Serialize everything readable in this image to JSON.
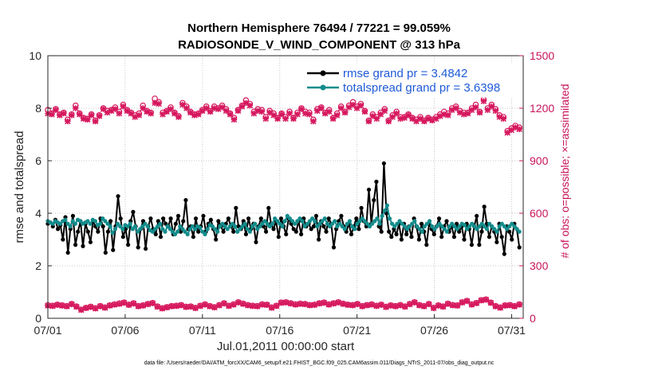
{
  "chart_data": {
    "type": "line",
    "title_line1": "Northern Hemisphere 76494 / 77221 = 99.059%",
    "title_line2": "RADIOSONDE_V_WIND_COMPONENT @ 313 hPa",
    "xlabel": "Jul.01,2011 00:00:00 start",
    "ylabel_left": "rmse and totalspread",
    "ylabel_right": "# of obs: o=possible; ×=assimilated",
    "footer": "data file: /Users/raeder/DAI/ATM_forcXX/CAM6_setup/f.e21.FHIST_BGC.f09_025.CAM6assim.011/Diags_NTrS_2011-07/obs_diag_output.nc",
    "x_ticks": [
      {
        "label": "07/01",
        "value": 0
      },
      {
        "label": "07/06",
        "value": 5
      },
      {
        "label": "07/11",
        "value": 10
      },
      {
        "label": "07/16",
        "value": 15
      },
      {
        "label": "07/21",
        "value": 20
      },
      {
        "label": "07/26",
        "value": 25
      },
      {
        "label": "07/31",
        "value": 30
      }
    ],
    "xlim": [
      0,
      30.75
    ],
    "ylim_left": [
      0,
      10
    ],
    "yticks_left": [
      "0",
      "2",
      "4",
      "6",
      "8",
      "10"
    ],
    "ylim_right": [
      0,
      1500
    ],
    "yticks_right": [
      "0",
      "300",
      "600",
      "900",
      "1200",
      "1500"
    ],
    "legend_location": "top-right",
    "colors": {
      "rmse": "#000000",
      "spread": "#138c8c",
      "obs": "#d6185e",
      "axis": "#262626"
    },
    "x_step_days": 0.25,
    "series": [
      {
        "name": "rmse grand pr = 3.4842",
        "axis": "left",
        "values": [
          3.6,
          3.65,
          3.5,
          3.75,
          3.4,
          3.55,
          3.0,
          3.85,
          2.5,
          3.4,
          3.9,
          2.8,
          3.3,
          3.7,
          2.75,
          3.6,
          3.3,
          2.9,
          3.7,
          3.5,
          3.3,
          3.8,
          3.5,
          2.5,
          3.3,
          3.7,
          2.6,
          3.5,
          4.65,
          3.8,
          3.1,
          3.4,
          2.8,
          3.7,
          4.05,
          3.5,
          2.7,
          3.4,
          3.7,
          2.65,
          3.5,
          3.8,
          3.4,
          3.2,
          3.7,
          3.1,
          3.8,
          3.6,
          3.5,
          3.8,
          3.2,
          3.6,
          3.9,
          3.3,
          3.7,
          4.5,
          3.4,
          3.5,
          3.1,
          3.8,
          3.3,
          3.5,
          3.9,
          3.3,
          3.6,
          3.75,
          3.4,
          3.0,
          3.7,
          3.5,
          3.3,
          3.6,
          3.8,
          3.5,
          3.3,
          4.2,
          3.5,
          3.4,
          3.7,
          3.2,
          3.8,
          3.4,
          3.6,
          2.9,
          3.5,
          3.8,
          3.5,
          3.3,
          4.2,
          3.6,
          3.4,
          3.7,
          3.1,
          3.8,
          3.5,
          3.2,
          3.8,
          3.6,
          3.4,
          3.3,
          3.7,
          3.2,
          3.8,
          3.5,
          3.6,
          3.4,
          3.5,
          3.9,
          3.0,
          3.7,
          3.5,
          3.3,
          3.8,
          3.6,
          2.7,
          3.4,
          3.7,
          3.9,
          3.5,
          3.3,
          3.6,
          3.2,
          3.5,
          3.8,
          3.4,
          4.2,
          3.7,
          3.5,
          4.9,
          3.6,
          4.5,
          5.2,
          3.5,
          3.3,
          5.9,
          4.0,
          3.3,
          3.1,
          3.4,
          3.2,
          3.6,
          3.0,
          3.6,
          3.2,
          3.5,
          3.1,
          3.8,
          3.5,
          3.0,
          3.6,
          3.3,
          2.8,
          3.6,
          3.4,
          3.2,
          3.5,
          3.8,
          3.1,
          3.5,
          3.7,
          3.3,
          3.5,
          3.1,
          3.6,
          3.3,
          3.5,
          3.0,
          3.6,
          3.4,
          2.8,
          3.5,
          3.9,
          2.8,
          3.3,
          4.25,
          3.6,
          3.1,
          3.5,
          3.3,
          2.9,
          3.6,
          3.1,
          2.45,
          3.5,
          3.3,
          3.0,
          3.6,
          3.4,
          2.7
        ]
      },
      {
        "name": "totalspread grand pr = 3.6398",
        "axis": "left",
        "values": [
          3.7,
          3.65,
          3.6,
          3.7,
          3.65,
          3.6,
          3.7,
          3.75,
          3.6,
          3.5,
          3.7,
          3.6,
          3.75,
          3.7,
          3.6,
          3.65,
          3.7,
          3.6,
          3.75,
          3.7,
          3.55,
          3.6,
          3.8,
          3.7,
          3.6,
          3.5,
          3.25,
          3.4,
          3.6,
          3.5,
          3.4,
          3.55,
          3.5,
          3.6,
          3.4,
          3.5,
          3.3,
          3.4,
          3.5,
          3.6,
          3.5,
          3.35,
          3.3,
          3.4,
          3.5,
          3.6,
          3.4,
          3.3,
          3.5,
          3.4,
          3.3,
          3.2,
          3.3,
          3.5,
          3.4,
          3.3,
          3.2,
          3.4,
          3.5,
          3.4,
          3.5,
          3.45,
          3.3,
          3.2,
          3.4,
          3.55,
          3.5,
          3.4,
          3.3,
          3.5,
          3.6,
          3.5,
          3.4,
          3.5,
          3.6,
          3.5,
          3.3,
          3.4,
          3.5,
          3.6,
          3.4,
          3.3,
          3.5,
          3.6,
          3.4,
          3.5,
          3.6,
          3.7,
          3.6,
          3.5,
          3.6,
          3.8,
          3.7,
          3.6,
          3.5,
          3.7,
          3.9,
          3.8,
          3.7,
          3.6,
          3.7,
          3.8,
          3.7,
          3.5,
          3.6,
          3.7,
          3.8,
          3.7,
          3.5,
          3.6,
          3.7,
          3.8,
          3.6,
          3.5,
          3.6,
          3.7,
          3.5,
          3.6,
          3.5,
          3.4,
          3.6,
          3.7,
          3.5,
          3.4,
          3.6,
          3.7,
          3.8,
          3.7,
          3.6,
          3.5,
          3.6,
          3.7,
          3.8,
          3.6,
          3.9,
          4.1,
          4.3,
          3.8,
          3.6,
          3.5,
          3.6,
          3.7,
          3.6,
          3.5,
          3.4,
          3.5,
          3.6,
          3.7,
          3.5,
          3.4,
          3.3,
          3.5,
          3.6,
          3.7,
          3.5,
          3.4,
          3.5,
          3.6,
          3.5,
          3.4,
          3.3,
          3.5,
          3.6,
          3.5,
          3.4,
          3.5,
          3.6,
          3.55,
          3.4,
          3.5,
          3.6,
          3.5,
          3.4,
          3.5,
          3.6,
          3.5,
          3.4,
          3.6,
          3.5,
          3.4,
          3.3,
          3.5,
          3.6,
          3.5,
          3.4,
          3.5,
          3.6,
          3.5,
          3.4,
          3.3
        ]
      },
      {
        "name": "obs possible",
        "axis": "right",
        "marker": "o",
        "values": [
          1190,
          1170,
          1195,
          1165,
          1175,
          1135,
          1165,
          1215,
          1170,
          1145,
          1140,
          1165,
          1130,
          1160,
          1200,
          1185,
          1190,
          1205,
          1180,
          1220,
          1190,
          1175,
          1160,
          1170,
          1215,
          1185,
          1175,
          1255,
          1235,
          1175,
          1185,
          1205,
          1175,
          1155,
          1230,
          1210,
          1180,
          1165,
          1170,
          1190,
          1210,
          1185,
          1210,
          1200,
          1215,
          1195,
          1170,
          1145,
          1190,
          1215,
          1245,
          1225,
          1180,
          1195,
          1190,
          1150,
          1185,
          1170,
          1145,
          1170,
          1150,
          1180,
          1145,
          1175,
          1200,
          1180,
          1175,
          1135,
          1195,
          1205,
          1175,
          1190,
          1145,
          1170,
          1210,
          1180,
          1215,
          1235,
          1210,
          1225,
          1185,
          1130,
          1165,
          1150,
          1175,
          1195,
          1130,
          1160,
          1180,
          1150,
          1150,
          1165,
          1145,
          1135,
          1150,
          1130,
          1145,
          1135,
          1150,
          1165,
          1180,
          1170,
          1200,
          1210,
          1185,
          1175,
          1175,
          1200,
          1220,
          1180,
          1250,
          1200,
          1220,
          1195,
          1160,
          1150,
          1070,
          1085,
          1100,
          1090
        ]
      },
      {
        "name": "obs assimilated",
        "axis": "right",
        "marker": "x",
        "values": [
          1170,
          1165,
          1190,
          1160,
          1170,
          1125,
          1160,
          1200,
          1165,
          1140,
          1135,
          1160,
          1125,
          1155,
          1195,
          1175,
          1185,
          1195,
          1170,
          1210,
          1185,
          1170,
          1150,
          1160,
          1200,
          1180,
          1170,
          1230,
          1225,
          1165,
          1180,
          1195,
          1170,
          1150,
          1220,
          1200,
          1175,
          1160,
          1165,
          1185,
          1200,
          1180,
          1200,
          1195,
          1205,
          1185,
          1165,
          1135,
          1185,
          1210,
          1230,
          1215,
          1170,
          1185,
          1180,
          1140,
          1175,
          1160,
          1140,
          1165,
          1140,
          1170,
          1140,
          1165,
          1195,
          1170,
          1165,
          1125,
          1185,
          1200,
          1170,
          1180,
          1140,
          1160,
          1200,
          1175,
          1205,
          1220,
          1200,
          1215,
          1180,
          1125,
          1155,
          1140,
          1165,
          1185,
          1125,
          1150,
          1170,
          1140,
          1145,
          1160,
          1140,
          1125,
          1140,
          1125,
          1140,
          1130,
          1140,
          1155,
          1165,
          1160,
          1190,
          1200,
          1175,
          1165,
          1170,
          1190,
          1205,
          1175,
          1240,
          1190,
          1210,
          1185,
          1150,
          1140,
          1060,
          1075,
          1090,
          1080
        ]
      },
      {
        "name": "obs possible (bottom)",
        "axis": "right",
        "marker": "o",
        "values": [
          75,
          72,
          78,
          74,
          70,
          82,
          68,
          50,
          60,
          66,
          58,
          70,
          62,
          74,
          80,
          85,
          90,
          78,
          86,
          70,
          74,
          82,
          88,
          68,
          58,
          64,
          70,
          72,
          76,
          66,
          68,
          60,
          72,
          80,
          70,
          64,
          76,
          86,
          72,
          80,
          92,
          84,
          76,
          72,
          70,
          80,
          78,
          62,
          72,
          90,
          92,
          86,
          80,
          84,
          82,
          76,
          78,
          86,
          90,
          80,
          86,
          92,
          84,
          78,
          76,
          82,
          70,
          76,
          80,
          72,
          78,
          66,
          74,
          70,
          76,
          68,
          82,
          92,
          76,
          70,
          82,
          60,
          74,
          68,
          84,
          76,
          74,
          92,
          100,
          80,
          88,
          104,
          108,
          90,
          70,
          62,
          74,
          76,
          70,
          80
        ]
      },
      {
        "name": "obs assimilated (bottom)",
        "axis": "right",
        "marker": "x",
        "values": [
          72,
          70,
          76,
          72,
          68,
          80,
          66,
          48,
          58,
          64,
          56,
          68,
          60,
          72,
          78,
          82,
          88,
          76,
          84,
          68,
          72,
          80,
          86,
          66,
          56,
          62,
          68,
          70,
          74,
          64,
          66,
          58,
          70,
          78,
          68,
          62,
          74,
          84,
          70,
          78,
          90,
          82,
          74,
          70,
          68,
          78,
          76,
          60,
          70,
          88,
          90,
          84,
          78,
          82,
          80,
          74,
          76,
          84,
          88,
          78,
          84,
          90,
          82,
          76,
          74,
          80,
          68,
          74,
          78,
          70,
          76,
          64,
          72,
          68,
          74,
          66,
          80,
          90,
          74,
          68,
          80,
          58,
          72,
          66,
          82,
          74,
          72,
          90,
          98,
          78,
          86,
          102,
          106,
          88,
          68,
          60,
          72,
          74,
          68,
          78
        ]
      }
    ]
  }
}
